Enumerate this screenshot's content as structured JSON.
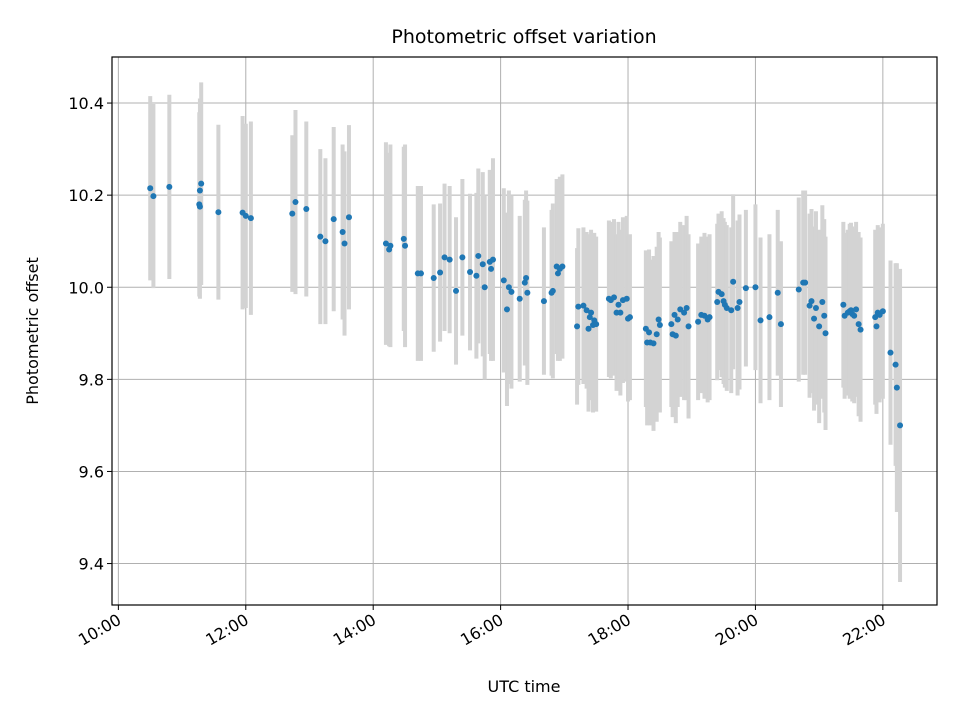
{
  "chart_data": {
    "type": "scatter",
    "title": "Photometric offset variation",
    "xlabel": "UTC time",
    "ylabel": "Photometric offset",
    "xlim_hours": [
      9.9,
      22.85
    ],
    "ylim": [
      9.31,
      10.5
    ],
    "x_ticks": [
      {
        "value": 10,
        "label": "10:00"
      },
      {
        "value": 12,
        "label": "12:00"
      },
      {
        "value": 14,
        "label": "14:00"
      },
      {
        "value": 16,
        "label": "16:00"
      },
      {
        "value": 18,
        "label": "18:00"
      },
      {
        "value": 20,
        "label": "20:00"
      },
      {
        "value": 22,
        "label": "22:00"
      }
    ],
    "y_ticks": [
      {
        "value": 9.4,
        "label": "9.4"
      },
      {
        "value": 9.6,
        "label": "9.6"
      },
      {
        "value": 9.8,
        "label": "9.8"
      },
      {
        "value": 10.0,
        "label": "10.0"
      },
      {
        "value": 10.2,
        "label": "10.2"
      },
      {
        "value": 10.4,
        "label": "10.4"
      }
    ],
    "grid": true,
    "point_color": "#1f77b4",
    "errorbar_color": "#d3d3d3",
    "points": [
      [
        10.5,
        10.215,
        0.2
      ],
      [
        10.55,
        10.198,
        0.2
      ],
      [
        10.8,
        10.218,
        0.2
      ],
      [
        11.28,
        10.21,
        0.2
      ],
      [
        11.3,
        10.225,
        0.22
      ],
      [
        11.27,
        10.18,
        0.2
      ],
      [
        11.28,
        10.175,
        0.2
      ],
      [
        11.57,
        10.163,
        0.19
      ],
      [
        11.95,
        10.162,
        0.21
      ],
      [
        12.0,
        10.155,
        0.2
      ],
      [
        12.08,
        10.15,
        0.21
      ],
      [
        12.73,
        10.16,
        0.17
      ],
      [
        12.78,
        10.185,
        0.2
      ],
      [
        12.95,
        10.17,
        0.19
      ],
      [
        13.17,
        10.11,
        0.19
      ],
      [
        13.25,
        10.1,
        0.18
      ],
      [
        13.38,
        10.148,
        0.2
      ],
      [
        13.52,
        10.12,
        0.19
      ],
      [
        13.55,
        10.095,
        0.2
      ],
      [
        13.62,
        10.152,
        0.2
      ],
      [
        14.2,
        10.095,
        0.22
      ],
      [
        14.25,
        10.082,
        0.21
      ],
      [
        14.27,
        10.09,
        0.22
      ],
      [
        14.48,
        10.105,
        0.2
      ],
      [
        14.5,
        10.09,
        0.22
      ],
      [
        14.7,
        10.03,
        0.19
      ],
      [
        14.75,
        10.03,
        0.19
      ],
      [
        14.95,
        10.02,
        0.16
      ],
      [
        15.05,
        10.032,
        0.15
      ],
      [
        15.12,
        10.065,
        0.16
      ],
      [
        15.2,
        10.06,
        0.16
      ],
      [
        15.3,
        9.992,
        0.16
      ],
      [
        15.4,
        10.065,
        0.17
      ],
      [
        15.52,
        10.033,
        0.17
      ],
      [
        15.62,
        10.025,
        0.18
      ],
      [
        15.65,
        10.068,
        0.19
      ],
      [
        15.72,
        10.05,
        0.2
      ],
      [
        15.75,
        10.0,
        0.2
      ],
      [
        15.83,
        10.055,
        0.2
      ],
      [
        15.85,
        10.04,
        0.2
      ],
      [
        15.88,
        10.06,
        0.22
      ],
      [
        16.05,
        10.015,
        0.2
      ],
      [
        16.1,
        9.952,
        0.21
      ],
      [
        16.13,
        10.0,
        0.21
      ],
      [
        16.17,
        9.99,
        0.21
      ],
      [
        16.3,
        9.975,
        0.18
      ],
      [
        16.38,
        10.01,
        0.18
      ],
      [
        16.4,
        10.02,
        0.19
      ],
      [
        16.42,
        9.988,
        0.2
      ],
      [
        16.68,
        9.97,
        0.16
      ],
      [
        16.8,
        9.988,
        0.18
      ],
      [
        16.82,
        9.992,
        0.19
      ],
      [
        16.88,
        10.045,
        0.19
      ],
      [
        16.9,
        10.03,
        0.19
      ],
      [
        16.93,
        10.04,
        0.2
      ],
      [
        16.97,
        10.045,
        0.2
      ],
      [
        17.2,
        9.915,
        0.17
      ],
      [
        17.22,
        9.958,
        0.17
      ],
      [
        17.3,
        9.96,
        0.17
      ],
      [
        17.35,
        9.95,
        0.17
      ],
      [
        17.38,
        9.91,
        0.18
      ],
      [
        17.4,
        9.935,
        0.18
      ],
      [
        17.42,
        9.945,
        0.18
      ],
      [
        17.45,
        9.918,
        0.19
      ],
      [
        17.47,
        9.928,
        0.19
      ],
      [
        17.5,
        9.92,
        0.19
      ],
      [
        17.7,
        9.975,
        0.17
      ],
      [
        17.73,
        9.972,
        0.17
      ],
      [
        17.78,
        9.978,
        0.17
      ],
      [
        17.82,
        9.945,
        0.17
      ],
      [
        17.85,
        9.962,
        0.18
      ],
      [
        17.88,
        9.945,
        0.18
      ],
      [
        17.92,
        9.972,
        0.18
      ],
      [
        17.98,
        9.975,
        0.18
      ],
      [
        18.0,
        9.932,
        0.18
      ],
      [
        18.03,
        9.935,
        0.18
      ],
      [
        18.28,
        9.91,
        0.17
      ],
      [
        18.3,
        9.88,
        0.18
      ],
      [
        18.33,
        9.902,
        0.18
      ],
      [
        18.35,
        9.88,
        0.18
      ],
      [
        18.4,
        9.878,
        0.19
      ],
      [
        18.45,
        9.898,
        0.19
      ],
      [
        18.48,
        9.93,
        0.19
      ],
      [
        18.5,
        9.918,
        0.19
      ],
      [
        18.68,
        9.92,
        0.18
      ],
      [
        18.7,
        9.898,
        0.18
      ],
      [
        18.73,
        9.94,
        0.18
      ],
      [
        18.75,
        9.895,
        0.19
      ],
      [
        18.78,
        9.93,
        0.19
      ],
      [
        18.82,
        9.952,
        0.19
      ],
      [
        18.88,
        9.945,
        0.19
      ],
      [
        18.92,
        9.955,
        0.2
      ],
      [
        18.95,
        9.915,
        0.2
      ],
      [
        19.1,
        9.925,
        0.17
      ],
      [
        19.15,
        9.94,
        0.17
      ],
      [
        19.2,
        9.938,
        0.18
      ],
      [
        19.25,
        9.93,
        0.18
      ],
      [
        19.28,
        9.935,
        0.18
      ],
      [
        19.4,
        9.968,
        0.17
      ],
      [
        19.42,
        9.99,
        0.17
      ],
      [
        19.47,
        9.985,
        0.18
      ],
      [
        19.5,
        9.97,
        0.18
      ],
      [
        19.52,
        9.962,
        0.18
      ],
      [
        19.55,
        9.955,
        0.18
      ],
      [
        19.62,
        9.95,
        0.18
      ],
      [
        19.65,
        10.012,
        0.19
      ],
      [
        19.72,
        9.955,
        0.19
      ],
      [
        19.75,
        9.968,
        0.19
      ],
      [
        19.85,
        9.998,
        0.17
      ],
      [
        20.0,
        10.0,
        0.18
      ],
      [
        20.08,
        9.928,
        0.18
      ],
      [
        20.22,
        9.935,
        0.18
      ],
      [
        20.35,
        9.988,
        0.18
      ],
      [
        20.4,
        9.92,
        0.18
      ],
      [
        20.68,
        9.995,
        0.2
      ],
      [
        20.75,
        10.01,
        0.2
      ],
      [
        20.78,
        10.01,
        0.2
      ],
      [
        20.85,
        9.96,
        0.2
      ],
      [
        20.88,
        9.97,
        0.2
      ],
      [
        20.92,
        9.932,
        0.2
      ],
      [
        20.95,
        9.955,
        0.21
      ],
      [
        21.0,
        9.915,
        0.21
      ],
      [
        21.05,
        9.968,
        0.21
      ],
      [
        21.08,
        9.938,
        0.21
      ],
      [
        21.1,
        9.9,
        0.21
      ],
      [
        21.38,
        9.962,
        0.18
      ],
      [
        21.4,
        9.938,
        0.18
      ],
      [
        21.45,
        9.945,
        0.18
      ],
      [
        21.48,
        9.948,
        0.19
      ],
      [
        21.5,
        9.95,
        0.19
      ],
      [
        21.52,
        9.942,
        0.19
      ],
      [
        21.55,
        9.938,
        0.19
      ],
      [
        21.58,
        9.952,
        0.19
      ],
      [
        21.62,
        9.92,
        0.2
      ],
      [
        21.65,
        9.908,
        0.2
      ],
      [
        21.88,
        9.935,
        0.19
      ],
      [
        21.9,
        9.915,
        0.19
      ],
      [
        21.92,
        9.945,
        0.19
      ],
      [
        21.95,
        9.94,
        0.19
      ],
      [
        22.0,
        9.948,
        0.19
      ],
      [
        22.12,
        9.858,
        0.2
      ],
      [
        22.2,
        9.832,
        0.22
      ],
      [
        22.22,
        9.782,
        0.27
      ],
      [
        22.27,
        9.7,
        0.34
      ]
    ]
  }
}
